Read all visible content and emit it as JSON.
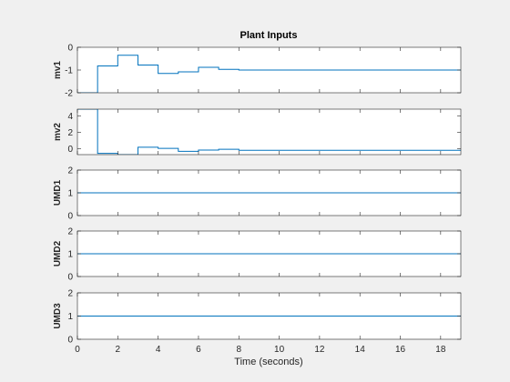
{
  "chart_data": {
    "type": "line",
    "title": "Plant Inputs",
    "xlabel": "Time (seconds)",
    "xlim": [
      0,
      19
    ],
    "xticks": [
      0,
      2,
      4,
      6,
      8,
      10,
      12,
      14,
      16,
      18
    ],
    "line_color": "#0072bd",
    "grid": false,
    "subplots": [
      {
        "ylabel": "mv1",
        "ylim": [
          -2,
          0
        ],
        "yticks": [
          -2,
          -1,
          0
        ],
        "step": true,
        "x": [
          0,
          1,
          2,
          3,
          4,
          5,
          6,
          7,
          8,
          9,
          19
        ],
        "y": [
          -2.0,
          -0.82,
          -0.35,
          -0.78,
          -1.15,
          -1.08,
          -0.88,
          -0.97,
          -1.0,
          -1.0,
          -1.0
        ]
      },
      {
        "ylabel": "mv2",
        "ylim": [
          -0.7,
          4.8
        ],
        "yticks": [
          0,
          2,
          4
        ],
        "step": true,
        "x": [
          0,
          1,
          2,
          3,
          4,
          5,
          6,
          7,
          8,
          9,
          19
        ],
        "y": [
          4.8,
          -0.55,
          -0.7,
          0.2,
          0.05,
          -0.3,
          -0.15,
          -0.05,
          -0.18,
          -0.18,
          -0.18
        ]
      },
      {
        "ylabel": "UMD1",
        "ylim": [
          0,
          2
        ],
        "yticks": [
          0,
          1,
          2
        ],
        "step": true,
        "x": [
          0,
          19
        ],
        "y": [
          1,
          1
        ]
      },
      {
        "ylabel": "UMD2",
        "ylim": [
          0,
          2
        ],
        "yticks": [
          0,
          1,
          2
        ],
        "step": true,
        "x": [
          0,
          19
        ],
        "y": [
          1,
          1
        ]
      },
      {
        "ylabel": "UMD3",
        "ylim": [
          0,
          2
        ],
        "yticks": [
          0,
          1,
          2
        ],
        "step": true,
        "x": [
          0,
          19
        ],
        "y": [
          1,
          1
        ]
      }
    ]
  }
}
